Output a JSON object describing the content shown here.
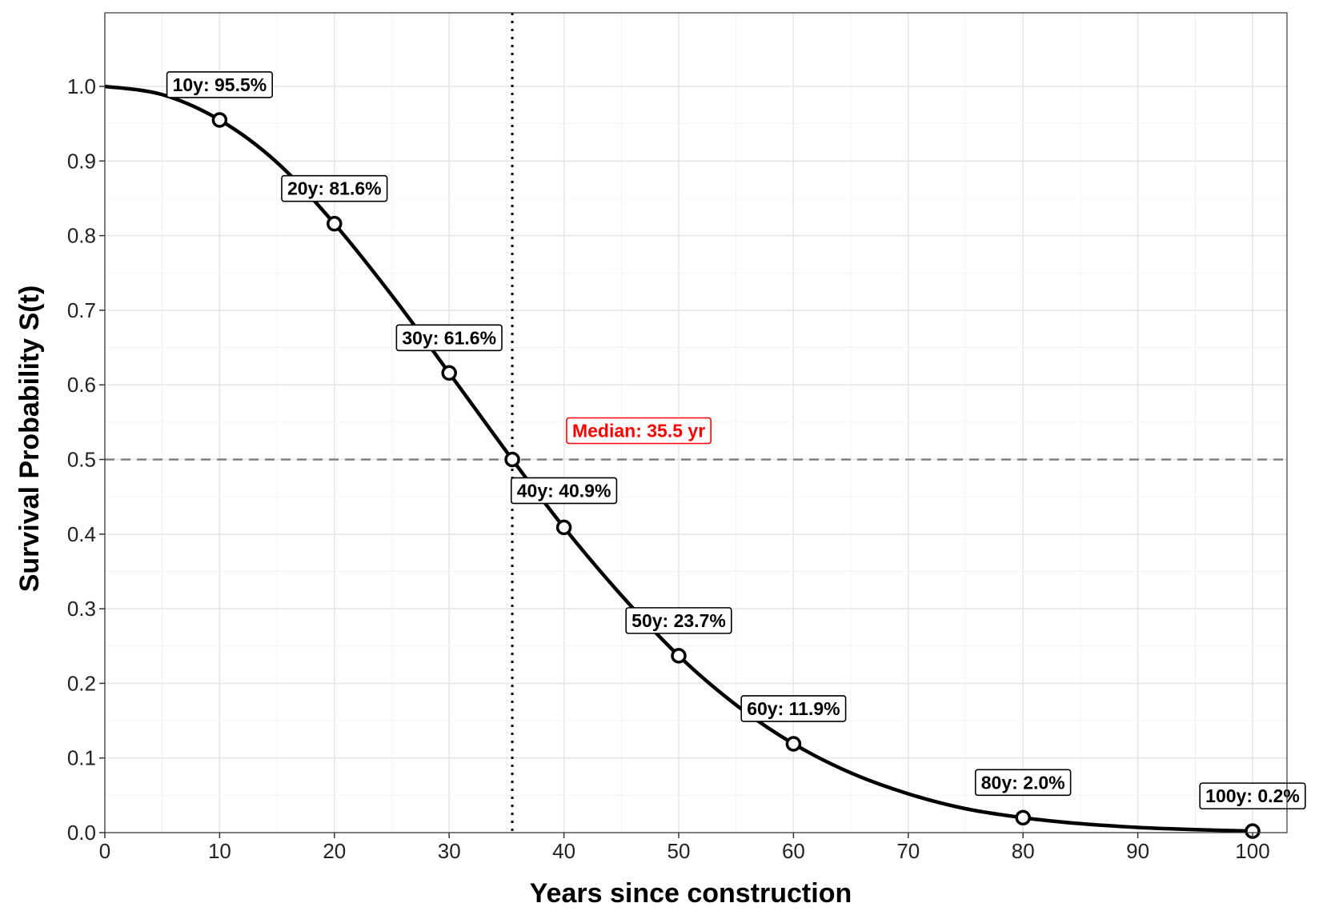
{
  "chart_data": {
    "type": "line",
    "title": "",
    "xlabel": "Years since construction",
    "ylabel": "Survival Probability S(t)",
    "xlim": [
      0,
      100
    ],
    "ylim": [
      0,
      1.0
    ],
    "x_ticks": [
      0,
      10,
      20,
      30,
      40,
      50,
      60,
      70,
      80,
      90,
      100
    ],
    "y_ticks": [
      0.0,
      0.1,
      0.2,
      0.3,
      0.4,
      0.5,
      0.6,
      0.7,
      0.8,
      0.9,
      1.0
    ],
    "x_tick_labels": [
      "0",
      "10",
      "20",
      "30",
      "40",
      "50",
      "60",
      "70",
      "80",
      "90",
      "100"
    ],
    "y_tick_labels": [
      "0.0",
      "0.1",
      "0.2",
      "0.3",
      "0.4",
      "0.5",
      "0.6",
      "0.7",
      "0.8",
      "0.9",
      "1.0"
    ],
    "grid": true,
    "curve": {
      "x": [
        0,
        5,
        10,
        15,
        20,
        25,
        30,
        35.5,
        40,
        45,
        50,
        55,
        60,
        65,
        70,
        75,
        80,
        85,
        90,
        95,
        100
      ],
      "y": [
        1.0,
        0.989,
        0.955,
        0.898,
        0.816,
        0.72,
        0.616,
        0.5,
        0.409,
        0.318,
        0.237,
        0.171,
        0.119,
        0.08,
        0.052,
        0.032,
        0.02,
        0.012,
        0.007,
        0.004,
        0.002
      ]
    },
    "points": [
      {
        "x": 10,
        "y": 0.955,
        "label": "10y: 95.5%"
      },
      {
        "x": 20,
        "y": 0.816,
        "label": "20y: 81.6%"
      },
      {
        "x": 30,
        "y": 0.616,
        "label": "30y: 61.6%"
      },
      {
        "x": 35.5,
        "y": 0.5,
        "label": ""
      },
      {
        "x": 40,
        "y": 0.409,
        "label": "40y: 40.9%"
      },
      {
        "x": 50,
        "y": 0.237,
        "label": "50y: 23.7%"
      },
      {
        "x": 60,
        "y": 0.119,
        "label": "60y: 11.9%"
      },
      {
        "x": 80,
        "y": 0.02,
        "label": "80y: 2.0%"
      },
      {
        "x": 100,
        "y": 0.002,
        "label": "100y: 0.2%"
      }
    ],
    "median": {
      "x": 35.5,
      "y": 0.5,
      "label": "Median: 35.5 yr",
      "color": "#ff0000"
    },
    "reference_lines": {
      "horizontal_y": 0.5,
      "vertical_x": 35.5
    }
  }
}
